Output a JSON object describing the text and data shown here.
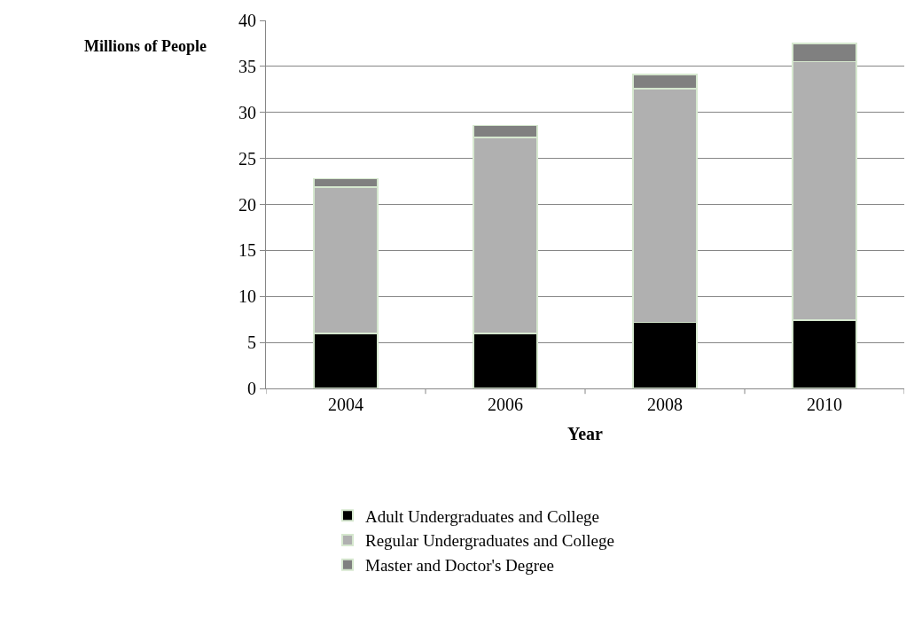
{
  "chart_data": {
    "type": "bar",
    "stacked": true,
    "xlabel": "Year",
    "ylabel": "Millions of People",
    "categories": [
      "2004",
      "2006",
      "2008",
      "2010"
    ],
    "series": [
      {
        "name": "Adult Undergraduates and College",
        "color": "#000000",
        "values": [
          6.0,
          6.0,
          7.2,
          7.4
        ]
      },
      {
        "name": "Regular Undergraduates and College",
        "color": "#b0b0b0",
        "values": [
          15.9,
          21.3,
          25.4,
          28.1
        ]
      },
      {
        "name": "Master and Doctor's Degree",
        "color": "#808080",
        "values": [
          0.9,
          1.3,
          1.5,
          2.0
        ]
      }
    ],
    "ylim": [
      0,
      40
    ],
    "yticks": [
      0,
      5,
      10,
      15,
      20,
      25,
      30,
      35,
      40
    ],
    "grid": "y",
    "legend": "bottom"
  }
}
